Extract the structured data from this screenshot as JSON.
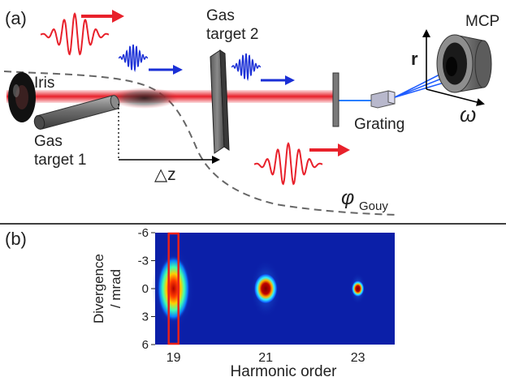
{
  "panel_a": {
    "label": "(a)",
    "iris": "Iris",
    "gas_target_1": [
      "Gas",
      "target 1"
    ],
    "gas_target_2": [
      "Gas",
      "target 2"
    ],
    "grating": "Grating",
    "mcp": "MCP",
    "axis_r": "r",
    "axis_omega": "ω",
    "delta_z": "△z",
    "gouy_symbol": "φ",
    "gouy_subscript": "Gouy"
  },
  "panel_b": {
    "label": "(b)"
  },
  "colors": {
    "laser_red": "#e8212b",
    "xuv_blue": "#1a2fd6",
    "gouy_dashed": "#666666",
    "heatmap_bg": "#0b1fa8",
    "highlight_box": "#e8201a"
  },
  "chart_data": {
    "type": "heatmap",
    "xlabel": "Harmonic order",
    "ylabel": [
      "Divergence",
      "/ mrad"
    ],
    "x_ticks": [
      "19",
      "21",
      "23"
    ],
    "y_ticks": [
      "-6",
      "-3",
      "0",
      "3",
      "6"
    ],
    "xlim": [
      18.6,
      23.8
    ],
    "ylim": [
      -6,
      6
    ],
    "harmonics": [
      {
        "order": 19,
        "divergence_center": 0,
        "divergence_halfwidth": 4.2,
        "peak": 1.0
      },
      {
        "order": 21,
        "divergence_center": 0,
        "divergence_halfwidth": 3.0,
        "peak": 1.0
      },
      {
        "order": 23,
        "divergence_center": 0,
        "divergence_halfwidth": 1.6,
        "peak": 1.0
      }
    ],
    "highlighted_harmonic": 19
  }
}
